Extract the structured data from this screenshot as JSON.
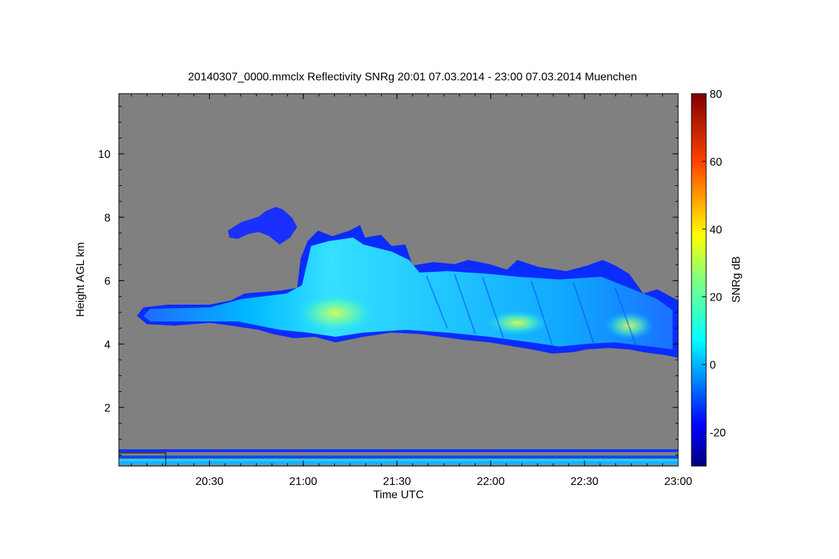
{
  "chart_data": {
    "type": "heatmap",
    "title": "20140307_0000.mmclx Reflectivity SNRg   20:01 07.03.2014 - 23:00 07.03.2014 Muenchen",
    "xlabel": "Time UTC",
    "ylabel": "Height AGL km",
    "colorbar_label": "SNRg dB",
    "x_tick_labels": [
      "20:30",
      "21:00",
      "21:30",
      "22:00",
      "22:30",
      "23:00"
    ],
    "y_tick_labels": [
      "2",
      "4",
      "6",
      "8",
      "10"
    ],
    "colorbar_tick_labels": [
      "-20",
      "0",
      "20",
      "40",
      "60",
      "80"
    ],
    "xlim": [
      "20:01",
      "23:00"
    ],
    "ylim": [
      0.15,
      11.9
    ],
    "colorbar_range": [
      -30,
      80
    ],
    "colormap": "jet",
    "background_color": "#808080",
    "cloud_layer": {
      "description_source": "estimated from image",
      "top_km_by_time": [
        [
          "20:07",
          5.2
        ],
        [
          "20:20",
          5.3
        ],
        [
          "20:35",
          5.4
        ],
        [
          "20:50",
          5.6
        ],
        [
          "21:00",
          7.0
        ],
        [
          "21:15",
          7.4
        ],
        [
          "21:30",
          6.8
        ],
        [
          "21:45",
          6.5
        ],
        [
          "22:00",
          6.4
        ],
        [
          "22:15",
          6.3
        ],
        [
          "22:30",
          6.2
        ],
        [
          "22:45",
          6.0
        ],
        [
          "23:00",
          5.3
        ]
      ],
      "base_km_by_time": [
        [
          "20:07",
          4.7
        ],
        [
          "20:20",
          4.6
        ],
        [
          "20:35",
          4.5
        ],
        [
          "20:50",
          4.3
        ],
        [
          "21:00",
          4.2
        ],
        [
          "21:15",
          4.1
        ],
        [
          "21:30",
          4.3
        ],
        [
          "21:45",
          4.2
        ],
        [
          "22:00",
          4.1
        ],
        [
          "22:15",
          4.0
        ],
        [
          "22:30",
          3.9
        ],
        [
          "22:45",
          3.8
        ],
        [
          "23:00",
          3.7
        ]
      ],
      "peak_snr_db": 25,
      "typical_snr_db": 5
    },
    "upper_patch": {
      "time_range": [
        "20:43",
        "20:58"
      ],
      "height_range_km": [
        7.5,
        8.5
      ],
      "snr_db": -15
    },
    "near_ground_bands_km": [
      0.65,
      0.45,
      0.3,
      0.2
    ]
  }
}
